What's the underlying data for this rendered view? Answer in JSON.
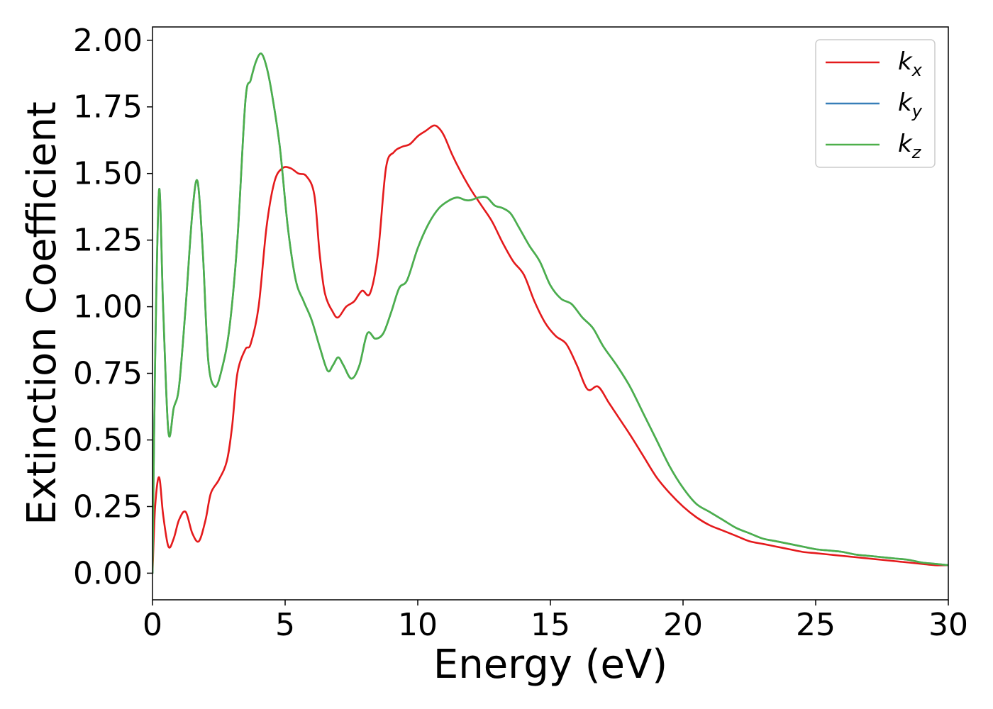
{
  "chart_data": {
    "type": "line",
    "xlabel": "Energy (eV)",
    "ylabel": "Extinction Coefficient",
    "xlim": [
      0,
      30
    ],
    "ylim": [
      -0.1,
      2.05
    ],
    "xticks": [
      0,
      5,
      10,
      15,
      20,
      25,
      30
    ],
    "xtick_labels": [
      "0",
      "5",
      "10",
      "15",
      "20",
      "25",
      "30"
    ],
    "yticks": [
      0,
      0.25,
      0.5,
      0.75,
      1.0,
      1.25,
      1.5,
      1.75,
      2.0
    ],
    "ytick_labels": [
      "0.00",
      "0.25",
      "0.50",
      "0.75",
      "1.00",
      "1.25",
      "1.50",
      "1.75",
      "2.00"
    ],
    "grid": false,
    "legend_position": "top-right",
    "series": [
      {
        "name": "k_x",
        "label_base": "k",
        "label_sub": "x",
        "color": "#e41a1c",
        "x": [
          0,
          0.1,
          0.25,
          0.4,
          0.6,
          0.8,
          1.0,
          1.25,
          1.5,
          1.75,
          2.0,
          2.2,
          2.5,
          2.8,
          3.0,
          3.2,
          3.5,
          3.7,
          4.0,
          4.3,
          4.6,
          4.9,
          5.2,
          5.5,
          5.8,
          6.1,
          6.3,
          6.5,
          6.8,
          7.0,
          7.3,
          7.6,
          7.9,
          8.2,
          8.5,
          8.8,
          9.1,
          9.4,
          9.7,
          10.0,
          10.3,
          10.6,
          10.8,
          11.0,
          11.3,
          11.6,
          12.0,
          12.4,
          12.8,
          13.2,
          13.6,
          14.0,
          14.4,
          14.8,
          15.2,
          15.6,
          16.0,
          16.4,
          16.8,
          17.2,
          17.6,
          18.0,
          18.5,
          19.0,
          19.5,
          20.0,
          20.5,
          21.0,
          21.5,
          22.0,
          22.5,
          23.0,
          23.5,
          24.0,
          24.5,
          25.0,
          25.5,
          26.0,
          26.5,
          27.0,
          27.5,
          28.0,
          28.5,
          29.0,
          29.5,
          30.0
        ],
        "y": [
          0.0,
          0.25,
          0.36,
          0.22,
          0.1,
          0.13,
          0.2,
          0.23,
          0.15,
          0.12,
          0.2,
          0.3,
          0.35,
          0.42,
          0.55,
          0.75,
          0.84,
          0.86,
          1.0,
          1.3,
          1.47,
          1.52,
          1.52,
          1.5,
          1.49,
          1.42,
          1.2,
          1.05,
          0.98,
          0.96,
          1.0,
          1.02,
          1.06,
          1.05,
          1.2,
          1.52,
          1.58,
          1.6,
          1.61,
          1.64,
          1.66,
          1.68,
          1.67,
          1.64,
          1.57,
          1.51,
          1.44,
          1.38,
          1.32,
          1.24,
          1.17,
          1.12,
          1.02,
          0.94,
          0.89,
          0.86,
          0.78,
          0.69,
          0.7,
          0.64,
          0.58,
          0.52,
          0.44,
          0.36,
          0.3,
          0.25,
          0.21,
          0.18,
          0.16,
          0.14,
          0.12,
          0.11,
          0.1,
          0.09,
          0.08,
          0.075,
          0.07,
          0.065,
          0.06,
          0.055,
          0.05,
          0.045,
          0.04,
          0.035,
          0.03,
          0.03
        ]
      },
      {
        "name": "k_y",
        "label_base": "k",
        "label_sub": "y",
        "color": "#377eb8",
        "x": [
          0,
          0.1,
          0.25,
          0.4,
          0.6,
          0.8,
          1.0,
          1.25,
          1.5,
          1.7,
          1.9,
          2.1,
          2.35,
          2.6,
          2.9,
          3.2,
          3.5,
          3.7,
          3.9,
          4.1,
          4.3,
          4.5,
          4.8,
          5.1,
          5.4,
          5.7,
          6.0,
          6.3,
          6.6,
          6.8,
          7.0,
          7.2,
          7.5,
          7.8,
          8.1,
          8.4,
          8.7,
          9.0,
          9.3,
          9.6,
          10.0,
          10.4,
          10.8,
          11.2,
          11.5,
          11.8,
          12.0,
          12.3,
          12.6,
          12.9,
          13.2,
          13.5,
          13.8,
          14.2,
          14.6,
          15.0,
          15.4,
          15.8,
          16.2,
          16.6,
          17.0,
          17.5,
          18.0,
          18.5,
          19.0,
          19.5,
          20.0,
          20.5,
          21.0,
          21.5,
          22.0,
          22.5,
          23.0,
          23.5,
          24.0,
          24.5,
          25.0,
          25.5,
          26.0,
          26.5,
          27.0,
          27.5,
          28.0,
          28.5,
          29.0,
          29.5,
          30.0
        ],
        "y": [
          0.0,
          0.8,
          1.44,
          1.0,
          0.53,
          0.62,
          0.7,
          1.0,
          1.35,
          1.47,
          1.2,
          0.8,
          0.7,
          0.76,
          0.92,
          1.25,
          1.77,
          1.85,
          1.92,
          1.95,
          1.9,
          1.8,
          1.6,
          1.3,
          1.1,
          1.02,
          0.95,
          0.85,
          0.76,
          0.78,
          0.81,
          0.78,
          0.73,
          0.78,
          0.9,
          0.88,
          0.9,
          0.98,
          1.07,
          1.1,
          1.22,
          1.31,
          1.37,
          1.4,
          1.41,
          1.4,
          1.4,
          1.41,
          1.41,
          1.38,
          1.37,
          1.35,
          1.3,
          1.23,
          1.17,
          1.08,
          1.03,
          1.01,
          0.96,
          0.92,
          0.85,
          0.78,
          0.7,
          0.6,
          0.5,
          0.4,
          0.32,
          0.26,
          0.23,
          0.2,
          0.17,
          0.15,
          0.13,
          0.12,
          0.11,
          0.1,
          0.09,
          0.085,
          0.08,
          0.07,
          0.065,
          0.06,
          0.055,
          0.05,
          0.04,
          0.035,
          0.03
        ]
      },
      {
        "name": "k_z",
        "label_base": "k",
        "label_sub": "z",
        "color": "#4daf4a",
        "x": [
          0,
          0.1,
          0.25,
          0.4,
          0.6,
          0.8,
          1.0,
          1.25,
          1.5,
          1.7,
          1.9,
          2.1,
          2.35,
          2.6,
          2.9,
          3.2,
          3.5,
          3.7,
          3.9,
          4.1,
          4.3,
          4.5,
          4.8,
          5.1,
          5.4,
          5.7,
          6.0,
          6.3,
          6.6,
          6.8,
          7.0,
          7.2,
          7.5,
          7.8,
          8.1,
          8.4,
          8.7,
          9.0,
          9.3,
          9.6,
          10.0,
          10.4,
          10.8,
          11.2,
          11.5,
          11.8,
          12.0,
          12.3,
          12.6,
          12.9,
          13.2,
          13.5,
          13.8,
          14.2,
          14.6,
          15.0,
          15.4,
          15.8,
          16.2,
          16.6,
          17.0,
          17.5,
          18.0,
          18.5,
          19.0,
          19.5,
          20.0,
          20.5,
          21.0,
          21.5,
          22.0,
          22.5,
          23.0,
          23.5,
          24.0,
          24.5,
          25.0,
          25.5,
          26.0,
          26.5,
          27.0,
          27.5,
          28.0,
          28.5,
          29.0,
          29.5,
          30.0
        ],
        "y": [
          0.0,
          0.8,
          1.44,
          1.0,
          0.53,
          0.62,
          0.7,
          1.0,
          1.35,
          1.47,
          1.2,
          0.8,
          0.7,
          0.76,
          0.92,
          1.25,
          1.77,
          1.85,
          1.92,
          1.95,
          1.9,
          1.8,
          1.6,
          1.3,
          1.1,
          1.02,
          0.95,
          0.85,
          0.76,
          0.78,
          0.81,
          0.78,
          0.73,
          0.78,
          0.9,
          0.88,
          0.9,
          0.98,
          1.07,
          1.1,
          1.22,
          1.31,
          1.37,
          1.4,
          1.41,
          1.4,
          1.4,
          1.41,
          1.41,
          1.38,
          1.37,
          1.35,
          1.3,
          1.23,
          1.17,
          1.08,
          1.03,
          1.01,
          0.96,
          0.92,
          0.85,
          0.78,
          0.7,
          0.6,
          0.5,
          0.4,
          0.32,
          0.26,
          0.23,
          0.2,
          0.17,
          0.15,
          0.13,
          0.12,
          0.11,
          0.1,
          0.09,
          0.085,
          0.08,
          0.07,
          0.065,
          0.06,
          0.055,
          0.05,
          0.04,
          0.035,
          0.03
        ]
      }
    ]
  }
}
